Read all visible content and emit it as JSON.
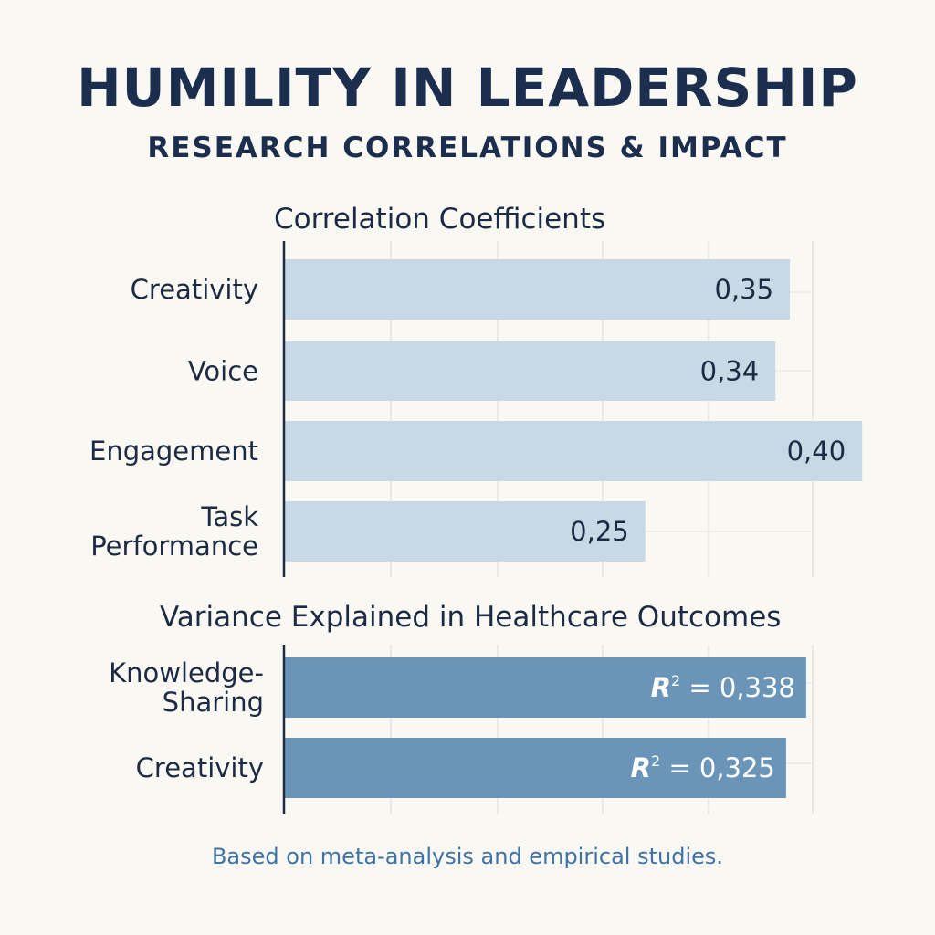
{
  "title": "HUMILITY IN LEADERSHIP",
  "subtitle": "RESEARCH CORRELATIONS & IMPACT",
  "footnote": "Based on meta-analysis and empirical studies.",
  "colors": {
    "background": "#faf8f2",
    "bar_light": "#c8d8e5",
    "bar_dark": "#6a95b9",
    "text": "#1c2a44",
    "footnote": "#3f72a6"
  },
  "chart_data": [
    {
      "type": "bar",
      "orientation": "horizontal",
      "title": "Correlation Coefficients",
      "categories": [
        [
          "Creativity"
        ],
        [
          "Voice"
        ],
        [
          "Engagement"
        ],
        [
          "Task",
          "Performance"
        ]
      ],
      "values": [
        0.35,
        0.34,
        0.4,
        0.25
      ],
      "value_labels": [
        "0,35",
        "0,34",
        "0,40",
        "0,25"
      ],
      "grid": true,
      "legend": "none"
    },
    {
      "type": "bar",
      "orientation": "horizontal",
      "title": "Variance Explained in Healthcare Outcomes",
      "categories": [
        [
          "Knowledge-",
          "Sharing"
        ],
        [
          "Creativity"
        ]
      ],
      "values": [
        0.338,
        0.325
      ],
      "value_labels": [
        "= 0,338",
        "= 0,325"
      ],
      "value_label_prefix": "R",
      "value_label_superscript": "2",
      "grid": true,
      "legend": "none"
    }
  ]
}
